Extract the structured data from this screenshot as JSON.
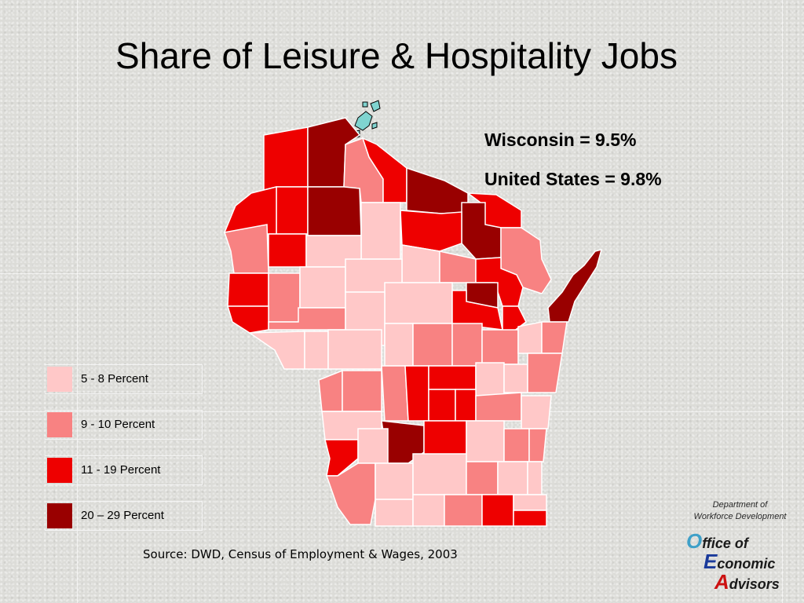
{
  "title": "Share of Leisure & Hospitality Jobs",
  "stats": {
    "wisconsin": "Wisconsin = 9.5%",
    "united_states": "United States = 9.8%"
  },
  "legend": [
    {
      "label": "5 - 8 Percent",
      "color": "#ffc8c8"
    },
    {
      "label": "9 - 10 Percent",
      "color": "#f88282"
    },
    {
      "label": "11 - 19 Percent",
      "color": "#ee0000"
    },
    {
      "label": "20 – 29 Percent",
      "color": "#990000"
    }
  ],
  "source": "Source: DWD, Census of Employment & Wages, 2003",
  "branding": {
    "department_line1": "Department of",
    "department_line2": "Workforce Development",
    "office": {
      "initial": "O",
      "rest": "ffice of",
      "initial_color": "#3fa0c8"
    },
    "economic": {
      "initial": "E",
      "rest": "conomic",
      "initial_color": "#1a3a9a"
    },
    "advisors": {
      "initial": "A",
      "rest": "dvisors",
      "initial_color": "#cc1111"
    }
  },
  "colors": {
    "water": "#7fd4d0",
    "background": "#dcdcd8"
  }
}
